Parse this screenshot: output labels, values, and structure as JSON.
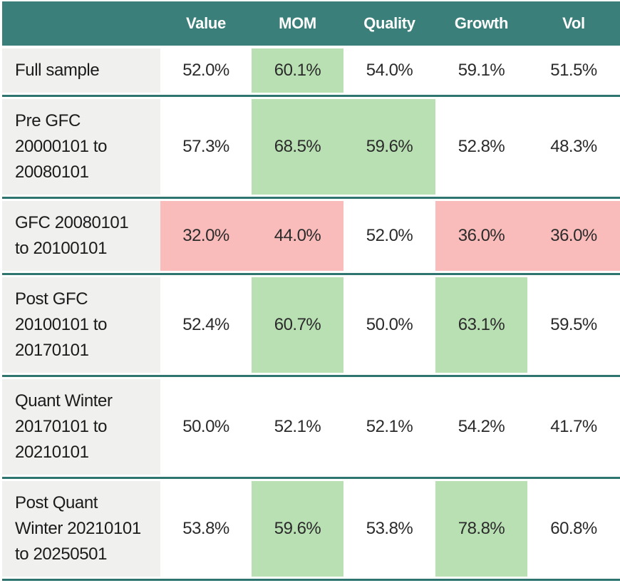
{
  "colors": {
    "teal": "#3a7f79",
    "teal-line": "#2f756f",
    "green": "#b9e0b3",
    "red": "#f9bcba",
    "gray": "#f0f0ee"
  },
  "table": {
    "columns": [
      "",
      "Value",
      "MOM",
      "Quality",
      "Growth",
      "Vol"
    ],
    "rows": [
      {
        "label": "Full sample",
        "values": [
          "52.0%",
          "60.1%",
          "54.0%",
          "59.1%",
          "51.5%"
        ],
        "highlights": [
          "none",
          "green",
          "none",
          "none",
          "none"
        ]
      },
      {
        "label": "Pre GFC\n20000101 to\n20080101",
        "values": [
          "57.3%",
          "68.5%",
          "59.6%",
          "52.8%",
          "48.3%"
        ],
        "highlights": [
          "none",
          "green",
          "green",
          "none",
          "none"
        ]
      },
      {
        "label": "GFC 20080101\nto 20100101",
        "values": [
          "32.0%",
          "44.0%",
          "52.0%",
          "36.0%",
          "36.0%"
        ],
        "highlights": [
          "red",
          "red",
          "none",
          "red",
          "red"
        ]
      },
      {
        "label": "Post GFC\n20100101 to\n20170101",
        "values": [
          "52.4%",
          "60.7%",
          "50.0%",
          "63.1%",
          "59.5%"
        ],
        "highlights": [
          "none",
          "green",
          "none",
          "green",
          "none"
        ]
      },
      {
        "label": "Quant Winter\n20170101 to\n20210101",
        "values": [
          "50.0%",
          "52.1%",
          "52.1%",
          "54.2%",
          "41.7%"
        ],
        "highlights": [
          "none",
          "none",
          "none",
          "none",
          "none"
        ]
      },
      {
        "label": "Post Quant\nWinter 20210101\nto 20250501",
        "values": [
          "53.8%",
          "59.6%",
          "53.8%",
          "78.8%",
          "60.8%"
        ],
        "highlights": [
          "none",
          "green",
          "none",
          "green",
          "none"
        ]
      }
    ]
  }
}
